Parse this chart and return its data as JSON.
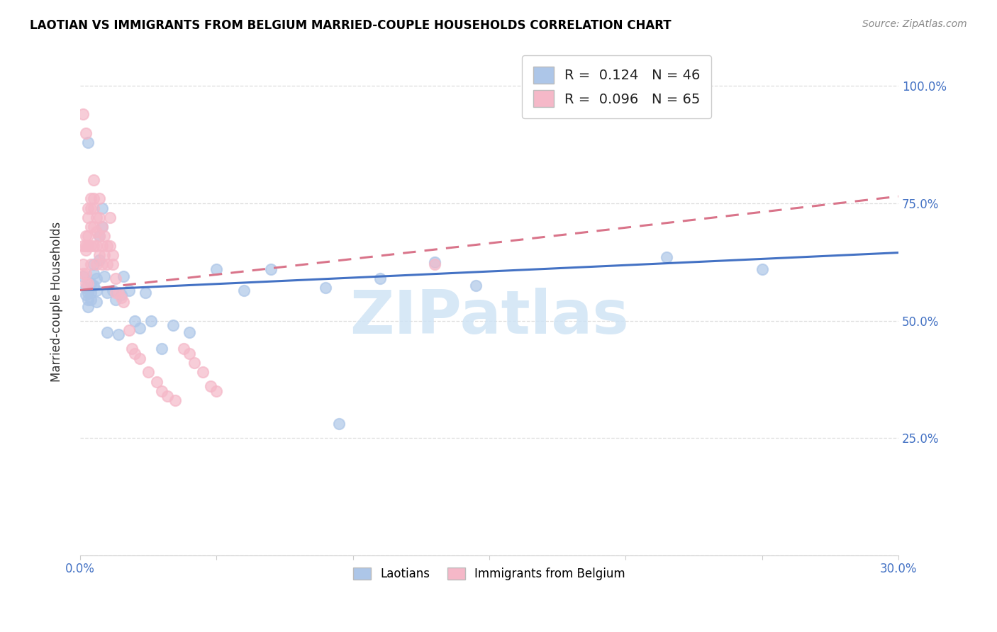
{
  "title": "LAOTIAN VS IMMIGRANTS FROM BELGIUM MARRIED-COUPLE HOUSEHOLDS CORRELATION CHART",
  "source": "Source: ZipAtlas.com",
  "ylabel": "Married-couple Households",
  "ytick_vals": [
    0.0,
    0.25,
    0.5,
    0.75,
    1.0
  ],
  "ytick_labels": [
    "",
    "25.0%",
    "50.0%",
    "75.0%",
    "100.0%"
  ],
  "xlim": [
    0.0,
    0.3
  ],
  "ylim": [
    0.0,
    1.08
  ],
  "legend_blue_r": "0.124",
  "legend_blue_n": "46",
  "legend_pink_r": "0.096",
  "legend_pink_n": "65",
  "blue_color": "#adc6e8",
  "pink_color": "#f5b8c8",
  "blue_line_color": "#4472c4",
  "pink_line_color": "#d9748a",
  "watermark_text": "ZIPatlas",
  "watermark_color": "#d0e4f5",
  "blue_line_x": [
    0.0,
    0.3
  ],
  "blue_line_y": [
    0.565,
    0.645
  ],
  "pink_line_x": [
    0.0,
    0.3
  ],
  "pink_line_y": [
    0.565,
    0.765
  ],
  "blue_scatter_x": [
    0.001,
    0.002,
    0.002,
    0.003,
    0.003,
    0.003,
    0.004,
    0.004,
    0.004,
    0.005,
    0.005,
    0.005,
    0.006,
    0.006,
    0.006,
    0.007,
    0.007,
    0.008,
    0.008,
    0.009,
    0.01,
    0.01,
    0.012,
    0.013,
    0.014,
    0.015,
    0.016,
    0.018,
    0.02,
    0.022,
    0.024,
    0.026,
    0.03,
    0.034,
    0.04,
    0.05,
    0.06,
    0.07,
    0.09,
    0.095,
    0.11,
    0.13,
    0.145,
    0.215,
    0.25,
    0.003
  ],
  "blue_scatter_y": [
    0.595,
    0.57,
    0.555,
    0.56,
    0.545,
    0.53,
    0.58,
    0.56,
    0.545,
    0.62,
    0.6,
    0.575,
    0.59,
    0.565,
    0.54,
    0.63,
    0.68,
    0.7,
    0.74,
    0.595,
    0.56,
    0.475,
    0.565,
    0.545,
    0.47,
    0.555,
    0.595,
    0.565,
    0.5,
    0.485,
    0.56,
    0.5,
    0.44,
    0.49,
    0.475,
    0.61,
    0.565,
    0.61,
    0.57,
    0.28,
    0.59,
    0.625,
    0.575,
    0.635,
    0.61,
    0.88
  ],
  "pink_scatter_x": [
    0.001,
    0.001,
    0.001,
    0.002,
    0.002,
    0.002,
    0.002,
    0.002,
    0.003,
    0.003,
    0.003,
    0.003,
    0.003,
    0.004,
    0.004,
    0.004,
    0.004,
    0.004,
    0.005,
    0.005,
    0.005,
    0.005,
    0.005,
    0.006,
    0.006,
    0.006,
    0.006,
    0.007,
    0.007,
    0.007,
    0.007,
    0.008,
    0.008,
    0.008,
    0.009,
    0.009,
    0.01,
    0.01,
    0.011,
    0.011,
    0.012,
    0.012,
    0.013,
    0.013,
    0.014,
    0.015,
    0.016,
    0.018,
    0.019,
    0.02,
    0.022,
    0.025,
    0.028,
    0.03,
    0.032,
    0.035,
    0.038,
    0.04,
    0.042,
    0.045,
    0.048,
    0.05,
    0.13,
    0.001,
    0.002
  ],
  "pink_scatter_y": [
    0.66,
    0.62,
    0.6,
    0.68,
    0.66,
    0.65,
    0.6,
    0.58,
    0.74,
    0.72,
    0.68,
    0.66,
    0.58,
    0.76,
    0.74,
    0.7,
    0.66,
    0.62,
    0.8,
    0.76,
    0.74,
    0.7,
    0.66,
    0.72,
    0.69,
    0.66,
    0.62,
    0.76,
    0.72,
    0.68,
    0.64,
    0.7,
    0.66,
    0.62,
    0.68,
    0.64,
    0.66,
    0.62,
    0.72,
    0.66,
    0.64,
    0.62,
    0.59,
    0.56,
    0.56,
    0.55,
    0.54,
    0.48,
    0.44,
    0.43,
    0.42,
    0.39,
    0.37,
    0.35,
    0.34,
    0.33,
    0.44,
    0.43,
    0.41,
    0.39,
    0.36,
    0.35,
    0.62,
    0.94,
    0.9
  ]
}
